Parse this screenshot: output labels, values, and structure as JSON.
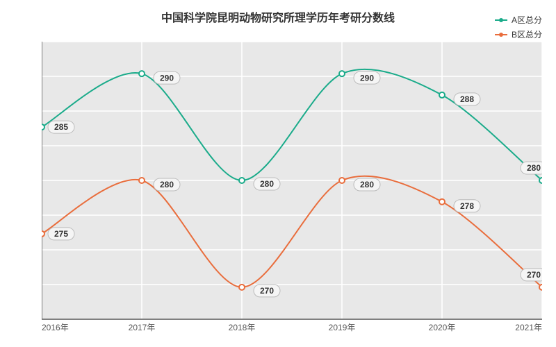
{
  "title": "中国科学院昆明动物研究所理学历年考研分数线",
  "title_fontsize": 16,
  "legend": {
    "items": [
      {
        "label": "A区总分",
        "color": "#1aab8a"
      },
      {
        "label": "B区总分",
        "color": "#e96d3c"
      }
    ]
  },
  "plot": {
    "background_color": "#e8e8e8",
    "grid_color": "#ffffff",
    "axis_line_color": "#555555",
    "ylim": [
      267,
      293
    ],
    "yticks": [
      267,
      270.25,
      273.5,
      276.75,
      280,
      283.25,
      286.5,
      289.75,
      293
    ],
    "xlabels": [
      "2016年",
      "2017年",
      "2018年",
      "2019年",
      "2020年",
      "2021年"
    ]
  },
  "series": [
    {
      "name": "A区总分",
      "color": "#1aab8a",
      "line_width": 2,
      "marker_radius": 4,
      "values": [
        285,
        290,
        280,
        290,
        288,
        280
      ],
      "label_offsets": [
        {
          "dx": 28,
          "dy": 0
        },
        {
          "dx": 36,
          "dy": 6
        },
        {
          "dx": 36,
          "dy": 5
        },
        {
          "dx": 36,
          "dy": 6
        },
        {
          "dx": 36,
          "dy": 6
        },
        {
          "dx": -12,
          "dy": -18
        }
      ]
    },
    {
      "name": "B区总分",
      "color": "#e96d3c",
      "line_width": 2,
      "marker_radius": 4,
      "values": [
        275,
        280,
        270,
        280,
        278,
        270
      ],
      "label_offsets": [
        {
          "dx": 28,
          "dy": 0
        },
        {
          "dx": 36,
          "dy": 6
        },
        {
          "dx": 36,
          "dy": 5
        },
        {
          "dx": 36,
          "dy": 6
        },
        {
          "dx": 36,
          "dy": 6
        },
        {
          "dx": -12,
          "dy": -18
        }
      ]
    }
  ]
}
